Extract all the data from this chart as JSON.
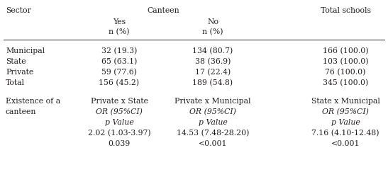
{
  "col_headers": {
    "sector": "Sector",
    "canteen_main": "Canteen",
    "yes": "Yes",
    "yes_sub": "n (%)",
    "no": "No",
    "no_sub": "n (%)",
    "total": "Total schools"
  },
  "rows": [
    [
      "Municipal",
      "32 (19.3)",
      "134 (80.7)",
      "166 (100.0)"
    ],
    [
      "State",
      "65 (63.1)",
      "38 (36.9)",
      "103 (100.0)"
    ],
    [
      "Private",
      "59 (77.6)",
      "17 (22.4)",
      "76 (100.0)"
    ],
    [
      "Total",
      "156 (45.2)",
      "189 (54.8)",
      "345 (100.0)"
    ]
  ],
  "existence_label_1": "Existence of a",
  "existence_label_2": "canteen",
  "or_cols": [
    {
      "comparison": "Private x State",
      "or_label": "OR (95%CI)",
      "p_label": "p Value",
      "or_value": "2.02 (1.03-3.97)",
      "p_value": "0.039"
    },
    {
      "comparison": "Private x Municipal",
      "or_label": "OR (95%CI)",
      "p_label": "p Value",
      "or_value": "14.53 (7.48-28.20)",
      "p_value": "<0.001"
    },
    {
      "comparison": "State x Municipal",
      "or_label": "OR (95%CI)",
      "p_label": "p Value",
      "or_value": "7.16 (4.10-12.48)",
      "p_value": "<0.001"
    }
  ],
  "bg_color": "#ffffff",
  "text_color": "#231f20",
  "line_color": "#231f20",
  "font_size": 7.8,
  "font_family": "DejaVu Serif",
  "fig_width": 5.47,
  "fig_height": 2.51,
  "dpi": 100
}
